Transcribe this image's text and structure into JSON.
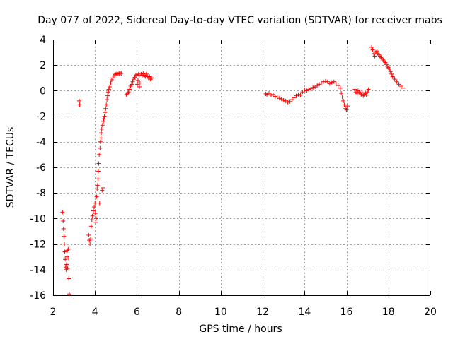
{
  "chart_data": {
    "type": "scatter",
    "title": "Day 077 of 2022, Sidereal Day-to-day VTEC variation (SDTVAR) for receiver mabs",
    "xlabel": "GPS time / hours",
    "ylabel": "SDTVAR / TECUs",
    "xlim": [
      2,
      20
    ],
    "ylim": [
      -16,
      4
    ],
    "xticks": [
      2,
      4,
      6,
      8,
      10,
      12,
      14,
      16,
      18,
      20
    ],
    "xtick_labels": [
      "2",
      "4",
      "6",
      "8",
      "10",
      "12",
      "14",
      "16",
      "18",
      "20"
    ],
    "yticks": [
      -16,
      -14,
      -12,
      -10,
      -8,
      -6,
      -4,
      -2,
      0,
      2,
      4
    ],
    "ytick_labels": [
      "-16",
      "-14",
      "-12",
      "-10",
      "-8",
      "-6",
      "-4",
      "-2",
      "0",
      "2",
      "4"
    ],
    "grid": true,
    "marker": "+",
    "series_color": "#ff0000",
    "series": [
      {
        "name": "SDTVAR",
        "points": [
          [
            2.45,
            -9.5
          ],
          [
            2.48,
            -10.2
          ],
          [
            2.5,
            -10.8
          ],
          [
            2.52,
            -11.4
          ],
          [
            2.54,
            -12.0
          ],
          [
            2.56,
            -12.6
          ],
          [
            2.58,
            -13.2
          ],
          [
            2.6,
            -13.8
          ],
          [
            2.62,
            -14.0
          ],
          [
            2.64,
            -13.6
          ],
          [
            2.66,
            -13.0
          ],
          [
            2.68,
            -12.5
          ],
          [
            2.7,
            -13.9
          ],
          [
            2.72,
            -12.4
          ],
          [
            2.74,
            -13.1
          ],
          [
            2.75,
            -14.7
          ],
          [
            2.77,
            -15.9
          ],
          [
            3.25,
            -0.8
          ],
          [
            3.27,
            -1.1
          ],
          [
            3.7,
            -11.3
          ],
          [
            3.73,
            -11.7
          ],
          [
            3.76,
            -12.0
          ],
          [
            3.79,
            -11.6
          ],
          [
            3.82,
            -10.6
          ],
          [
            3.85,
            -10.1
          ],
          [
            3.88,
            -9.8
          ],
          [
            3.92,
            -9.4
          ],
          [
            3.96,
            -9.1
          ],
          [
            4.0,
            -8.8
          ],
          [
            4.02,
            -9.6
          ],
          [
            4.04,
            -10.3
          ],
          [
            4.06,
            -10.0
          ],
          [
            4.08,
            -8.3
          ],
          [
            4.1,
            -7.7
          ],
          [
            4.12,
            -7.4
          ],
          [
            4.14,
            -6.9
          ],
          [
            4.16,
            -6.3
          ],
          [
            4.18,
            -5.7
          ],
          [
            4.2,
            -5.0
          ],
          [
            4.22,
            -8.8
          ],
          [
            4.24,
            -4.5
          ],
          [
            4.26,
            -4.0
          ],
          [
            4.28,
            -3.7
          ],
          [
            4.3,
            -3.3
          ],
          [
            4.32,
            -3.0
          ],
          [
            4.34,
            -7.8
          ],
          [
            4.36,
            -2.7
          ],
          [
            4.38,
            -7.6
          ],
          [
            4.4,
            -2.4
          ],
          [
            4.42,
            -2.2
          ],
          [
            4.45,
            -2.0
          ],
          [
            4.48,
            -1.7
          ],
          [
            4.51,
            -1.4
          ],
          [
            4.54,
            -1.1
          ],
          [
            4.57,
            -0.7
          ],
          [
            4.6,
            -0.4
          ],
          [
            4.63,
            -0.1
          ],
          [
            4.66,
            0.1
          ],
          [
            4.7,
            0.3
          ],
          [
            4.75,
            0.6
          ],
          [
            4.8,
            0.85
          ],
          [
            4.85,
            1.0
          ],
          [
            4.9,
            1.15
          ],
          [
            4.95,
            1.25
          ],
          [
            5.0,
            1.3
          ],
          [
            5.05,
            1.35
          ],
          [
            5.1,
            1.3
          ],
          [
            5.15,
            1.35
          ],
          [
            5.2,
            1.4
          ],
          [
            5.25,
            1.35
          ],
          [
            5.5,
            -0.3
          ],
          [
            5.55,
            -0.2
          ],
          [
            5.6,
            -0.1
          ],
          [
            5.65,
            0.1
          ],
          [
            5.7,
            0.35
          ],
          [
            5.75,
            0.5
          ],
          [
            5.8,
            0.7
          ],
          [
            5.85,
            0.9
          ],
          [
            5.9,
            1.05
          ],
          [
            5.95,
            1.2
          ],
          [
            6.0,
            1.25
          ],
          [
            6.02,
            0.5
          ],
          [
            6.05,
            0.8
          ],
          [
            6.08,
            1.3
          ],
          [
            6.1,
            1.2
          ],
          [
            6.12,
            0.3
          ],
          [
            6.15,
            0.6
          ],
          [
            6.2,
            1.3
          ],
          [
            6.25,
            1.2
          ],
          [
            6.3,
            1.35
          ],
          [
            6.35,
            1.2
          ],
          [
            6.4,
            1.1
          ],
          [
            6.45,
            1.3
          ],
          [
            6.5,
            1.1
          ],
          [
            6.55,
            1.0
          ],
          [
            6.6,
            1.1
          ],
          [
            6.65,
            0.9
          ],
          [
            6.7,
            1.0
          ],
          [
            12.15,
            -0.25
          ],
          [
            12.2,
            -0.3
          ],
          [
            12.3,
            -0.2
          ],
          [
            12.4,
            -0.35
          ],
          [
            12.5,
            -0.3
          ],
          [
            12.6,
            -0.45
          ],
          [
            12.7,
            -0.5
          ],
          [
            12.8,
            -0.6
          ],
          [
            12.9,
            -0.65
          ],
          [
            13.0,
            -0.75
          ],
          [
            13.1,
            -0.8
          ],
          [
            13.2,
            -0.9
          ],
          [
            13.3,
            -0.85
          ],
          [
            13.4,
            -0.7
          ],
          [
            13.5,
            -0.55
          ],
          [
            13.6,
            -0.4
          ],
          [
            13.7,
            -0.3
          ],
          [
            13.8,
            -0.35
          ],
          [
            13.9,
            -0.1
          ],
          [
            14.0,
            0.05
          ],
          [
            14.1,
            0.0
          ],
          [
            14.2,
            0.1
          ],
          [
            14.3,
            0.15
          ],
          [
            14.4,
            0.25
          ],
          [
            14.5,
            0.3
          ],
          [
            14.6,
            0.4
          ],
          [
            14.7,
            0.5
          ],
          [
            14.8,
            0.6
          ],
          [
            14.9,
            0.7
          ],
          [
            15.0,
            0.75
          ],
          [
            15.1,
            0.7
          ],
          [
            15.2,
            0.55
          ],
          [
            15.3,
            0.65
          ],
          [
            15.4,
            0.7
          ],
          [
            15.5,
            0.6
          ],
          [
            15.6,
            0.4
          ],
          [
            15.7,
            0.2
          ],
          [
            15.75,
            -0.2
          ],
          [
            15.8,
            -0.5
          ],
          [
            15.85,
            -0.8
          ],
          [
            15.9,
            -1.1
          ],
          [
            15.95,
            -1.4
          ],
          [
            16.0,
            -1.5
          ],
          [
            16.05,
            -1.2
          ],
          [
            16.4,
            0.1
          ],
          [
            16.45,
            -0.1
          ],
          [
            16.5,
            -0.2
          ],
          [
            16.55,
            0.0
          ],
          [
            16.6,
            -0.1
          ],
          [
            16.65,
            -0.2
          ],
          [
            16.7,
            -0.3
          ],
          [
            16.75,
            -0.15
          ],
          [
            16.8,
            -0.4
          ],
          [
            16.85,
            -0.3
          ],
          [
            16.9,
            -0.2
          ],
          [
            16.95,
            -0.35
          ],
          [
            17.0,
            -0.1
          ],
          [
            17.05,
            0.1
          ],
          [
            17.2,
            3.4
          ],
          [
            17.25,
            3.2
          ],
          [
            17.3,
            2.9
          ],
          [
            17.35,
            2.7
          ],
          [
            17.4,
            3.0
          ],
          [
            17.45,
            3.1
          ],
          [
            17.5,
            2.9
          ],
          [
            17.55,
            2.8
          ],
          [
            17.6,
            2.7
          ],
          [
            17.65,
            2.6
          ],
          [
            17.7,
            2.5
          ],
          [
            17.75,
            2.4
          ],
          [
            17.8,
            2.3
          ],
          [
            17.85,
            2.2
          ],
          [
            17.9,
            2.05
          ],
          [
            17.95,
            1.9
          ],
          [
            18.0,
            1.8
          ],
          [
            18.05,
            1.7
          ],
          [
            18.1,
            1.5
          ],
          [
            18.15,
            1.3
          ],
          [
            18.2,
            1.1
          ],
          [
            18.3,
            0.9
          ],
          [
            18.4,
            0.7
          ],
          [
            18.5,
            0.5
          ],
          [
            18.6,
            0.35
          ],
          [
            18.7,
            0.2
          ]
        ]
      }
    ]
  }
}
